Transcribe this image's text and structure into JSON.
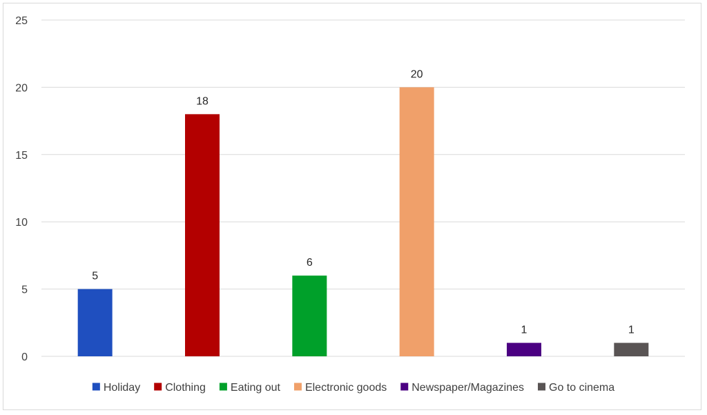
{
  "chart_data": {
    "type": "bar",
    "title": "",
    "xlabel": "",
    "ylabel": "",
    "categories": [
      "Holiday",
      "Clothing",
      "Eating out",
      "Electronic goods",
      "Newspaper/Magazines",
      "Go to cinema"
    ],
    "values": [
      5,
      18,
      6,
      20,
      1,
      1
    ],
    "data_labels": [
      "5",
      "18",
      "6",
      "20",
      "1",
      "1"
    ],
    "colors": [
      "#1f4fbf",
      "#b30000",
      "#00a02a",
      "#f0a06a",
      "#4b0082",
      "#595454"
    ],
    "ylim": [
      0,
      25
    ],
    "yticks": [
      0,
      5,
      10,
      15,
      20,
      25
    ],
    "grid": true,
    "legend": {
      "position": "bottom",
      "entries": [
        "Holiday",
        "Clothing",
        "Eating out",
        "Electronic goods",
        "Newspaper/Magazines",
        "Go to cinema"
      ]
    }
  }
}
